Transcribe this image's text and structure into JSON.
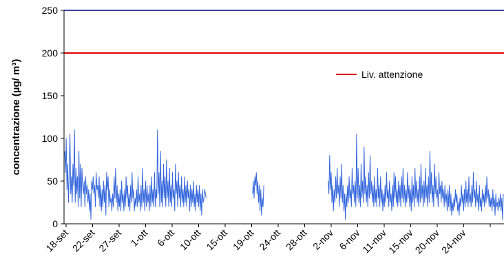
{
  "chart_data": {
    "type": "line",
    "title": "",
    "xlabel": "",
    "ylabel": "concentrazione (µg/ m³)",
    "ylim": [
      0,
      250
    ],
    "yticks": [
      0,
      50,
      100,
      150,
      200,
      250
    ],
    "x_tick_labels": [
      "18-set",
      "22-set",
      "27-set",
      "1-ott",
      "6-ott",
      "10-ott",
      "15-ott",
      "19-ott",
      "24-ott",
      "28-ott",
      "2-nov",
      "6-nov",
      "11-nov",
      "15-nov",
      "20-nov",
      "24-nov"
    ],
    "grid": false,
    "legend_position": "right",
    "colors": {
      "series": "#3366dd",
      "threshold": "#dd0000",
      "frame": "#000080"
    },
    "threshold": {
      "name": "Liv. attenzione",
      "value": 200
    },
    "series": [
      {
        "values": [
          85,
          60,
          100,
          40,
          70,
          25,
          60,
          105,
          35,
          55,
          25,
          70,
          45,
          110,
          25,
          65,
          35,
          55,
          20,
          85,
          30,
          70,
          20,
          65,
          45,
          35,
          50,
          20,
          55,
          35,
          45,
          25,
          40,
          15,
          35,
          5,
          50,
          40,
          55,
          35,
          45,
          20,
          60,
          40,
          45,
          30,
          55,
          20,
          45,
          15,
          40,
          20,
          50,
          25,
          45,
          10,
          60,
          40,
          55,
          20,
          40,
          25,
          30,
          15,
          35,
          20,
          55,
          30,
          65,
          25,
          45,
          15,
          35,
          20,
          40,
          15,
          50,
          25,
          35,
          15,
          40,
          20,
          55,
          30,
          45,
          20,
          35,
          15,
          45,
          25,
          60,
          30,
          40,
          15,
          30,
          20,
          40,
          20,
          55,
          25,
          35,
          15,
          45,
          20,
          65,
          25,
          40,
          15,
          50,
          20,
          45,
          25,
          35,
          15,
          45,
          20,
          55,
          25,
          40,
          20,
          60,
          20,
          40,
          30,
          110,
          35,
          60,
          20,
          85,
          25,
          50,
          20,
          70,
          30,
          55,
          20,
          75,
          30,
          50,
          20,
          65,
          25,
          45,
          20,
          60,
          30,
          40,
          15,
          70,
          35,
          50,
          20,
          60,
          30,
          45,
          20,
          55,
          25,
          40,
          20,
          55,
          25,
          45,
          20,
          50,
          30,
          40,
          15,
          45,
          20,
          40,
          25,
          50,
          20,
          35,
          15,
          45,
          25,
          40,
          20,
          45,
          15,
          35,
          10,
          40,
          25,
          30,
          40,
          35,
          30,
          null,
          null,
          null,
          null,
          null,
          null,
          null,
          null,
          null,
          null,
          null,
          null,
          null,
          null,
          null,
          null,
          null,
          null,
          null,
          null,
          null,
          null,
          null,
          null,
          null,
          null,
          null,
          null,
          null,
          null,
          null,
          null,
          null,
          null,
          null,
          null,
          null,
          null,
          null,
          null,
          null,
          null,
          null,
          null,
          null,
          null,
          null,
          null,
          null,
          null,
          null,
          null,
          null,
          null,
          null,
          null,
          null,
          null,
          null,
          null,
          null,
          35,
          50,
          30,
          55,
          45,
          60,
          35,
          50,
          25,
          45,
          15,
          40,
          10,
          30,
          20,
          45,
          null,
          null,
          null,
          null,
          null,
          null,
          null,
          null,
          null,
          null,
          null,
          null,
          null,
          null,
          null,
          null,
          null,
          null,
          null,
          null,
          null,
          null,
          null,
          null,
          null,
          null,
          null,
          null,
          null,
          null,
          null,
          null,
          null,
          null,
          null,
          null,
          null,
          null,
          null,
          null,
          null,
          null,
          null,
          null,
          null,
          null,
          null,
          null,
          null,
          null,
          null,
          null,
          null,
          null,
          null,
          null,
          null,
          null,
          null,
          null,
          null,
          null,
          null,
          null,
          null,
          null,
          null,
          null,
          null,
          null,
          null,
          null,
          null,
          null,
          null,
          null,
          null,
          null,
          null,
          null,
          null,
          null,
          null,
          null,
          null,
          50,
          35,
          80,
          40,
          60,
          25,
          45,
          15,
          40,
          25,
          55,
          30,
          65,
          35,
          45,
          20,
          55,
          30,
          70,
          25,
          45,
          15,
          35,
          5,
          35,
          20,
          45,
          25,
          55,
          30,
          40,
          20,
          65,
          35,
          45,
          25,
          50,
          20,
          105,
          30,
          65,
          25,
          45,
          20,
          70,
          30,
          50,
          25,
          90,
          35,
          55,
          25,
          45,
          20,
          60,
          30,
          80,
          35,
          50,
          25,
          45,
          20,
          55,
          25,
          40,
          20,
          65,
          30,
          45,
          20,
          55,
          25,
          40,
          15,
          35,
          20,
          45,
          25,
          60,
          30,
          40,
          20,
          50,
          25,
          35,
          15,
          45,
          20,
          60,
          30,
          55,
          25,
          40,
          20,
          50,
          25,
          45,
          20,
          55,
          30,
          65,
          25,
          45,
          20,
          40,
          25,
          60,
          30,
          45,
          20,
          40,
          15,
          55,
          25,
          45,
          20,
          65,
          30,
          50,
          25,
          40,
          20,
          55,
          25,
          70,
          30,
          45,
          20,
          50,
          25,
          65,
          30,
          45,
          20,
          55,
          25,
          85,
          35,
          60,
          25,
          45,
          20,
          70,
          35,
          55,
          30,
          40,
          20,
          60,
          35,
          45,
          25,
          50,
          30,
          40,
          20,
          45,
          25,
          35,
          15,
          40,
          20,
          45,
          15,
          35,
          10,
          25,
          15,
          30,
          20,
          40,
          25,
          35,
          15,
          25,
          10,
          30,
          20,
          45,
          25,
          35,
          15,
          40,
          20,
          50,
          25,
          40,
          20,
          55,
          25,
          35,
          20,
          45,
          25,
          60,
          30,
          40,
          20,
          50,
          25,
          35,
          15,
          45,
          20,
          30,
          15,
          40,
          25,
          35,
          20,
          45,
          25,
          55,
          30,
          40,
          20,
          35,
          20,
          30,
          15,
          40,
          20,
          30,
          10,
          35,
          20,
          25,
          15,
          30,
          20,
          35,
          15,
          30,
          5,
          35
        ]
      }
    ]
  }
}
